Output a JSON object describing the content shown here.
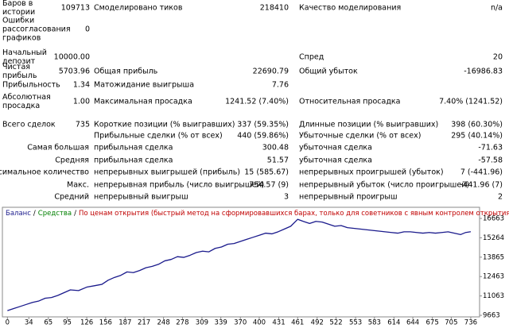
{
  "report": {
    "rows": [
      [
        "Баров в истории",
        "109713",
        "Смоделировано тиков",
        "218410",
        "Качество моделирования",
        "n/a"
      ],
      [
        "Ошибки рассогласования графиков",
        "0",
        null,
        null,
        null,
        null
      ],
      [
        "Начальный депозит",
        "10000.00",
        null,
        null,
        "Спред",
        "20"
      ],
      [
        "Чистая прибыль",
        "5703.96",
        "Общая прибыль",
        "22690.79",
        "Общий убыток",
        "-16986.83"
      ],
      [
        "Прибыльность",
        "1.34",
        "Матожидание выигрыша",
        "7.76",
        null,
        null
      ],
      [
        "Абсолютная просадка",
        "1.00",
        "Максимальная просадка",
        "1241.52 (7.40%)",
        "Относительная просадка",
        "7.40% (1241.52)"
      ],
      [
        "Всего сделок",
        "735",
        "Короткие позиции (% выигравших)",
        "337 (59.35%)",
        "Длинные позиции (% выигравших)",
        "398 (60.30%)"
      ],
      [
        null,
        null,
        "Прибыльные сделки (% от всех)",
        "440 (59.86%)",
        "Убыточные сделки (% от всех)",
        "295 (40.14%)"
      ],
      [
        "Самая большая",
        null,
        "прибыльная сделка",
        "300.48",
        "убыточная сделка",
        "-71.63"
      ],
      [
        "Средняя",
        null,
        "прибыльная сделка",
        "51.57",
        "убыточная сделка",
        "-57.58"
      ],
      [
        "Максимальное количество",
        null,
        "непрерывных выигрышей (прибыль)",
        "15 (585.67)",
        "непрерывных проигрышей (убыток)",
        "7 (-441.96)"
      ],
      [
        "Макс.",
        null,
        "непрерывная прибыль (число выигрышей)",
        "754.57 (9)",
        "непрерывный убыток (число проигрышей)",
        "-441.96 (7)"
      ],
      [
        "Средний",
        null,
        "непрерывный выигрыш",
        "3",
        "непрерывный проигрыш",
        "2"
      ]
    ]
  },
  "chart_data": {
    "type": "line",
    "legend_separator": "/",
    "equity_label": "Средства",
    "equity_color": "#008000",
    "method_label": "По ценам открытия (быстрый метод на сформировавшихся барах, только для советников с явным контролем открытия баров)",
    "method_color": "#c00000",
    "x": [
      0,
      10,
      20,
      30,
      40,
      50,
      60,
      70,
      80,
      90,
      100,
      113,
      126,
      138,
      150,
      160,
      170,
      180,
      190,
      200,
      210,
      220,
      230,
      240,
      250,
      260,
      270,
      280,
      290,
      300,
      310,
      320,
      330,
      340,
      350,
      360,
      370,
      380,
      390,
      400,
      410,
      420,
      430,
      440,
      450,
      461,
      470,
      480,
      490,
      500,
      510,
      520,
      530,
      540,
      550,
      560,
      570,
      580,
      590,
      600,
      610,
      620,
      630,
      640,
      650,
      660,
      670,
      680,
      690,
      700,
      710,
      720,
      728,
      736
    ],
    "series": [
      {
        "name": "Баланс",
        "color": "#1a1a8c",
        "values": [
          10000,
          10150,
          10300,
          10450,
          10600,
          10700,
          10900,
          10950,
          11100,
          11300,
          11500,
          11450,
          11700,
          11800,
          11900,
          12200,
          12400,
          12550,
          12800,
          12750,
          12900,
          13100,
          13200,
          13350,
          13600,
          13700,
          13900,
          13850,
          14000,
          14200,
          14300,
          14250,
          14500,
          14600,
          14800,
          14850,
          15000,
          15150,
          15300,
          15450,
          15600,
          15550,
          15700,
          15900,
          16100,
          16600,
          16450,
          16300,
          16450,
          16400,
          16250,
          16100,
          16150,
          16000,
          15950,
          15900,
          15850,
          15800,
          15750,
          15700,
          15650,
          15600,
          15700,
          15700,
          15650,
          15600,
          15650,
          15600,
          15650,
          15700,
          15600,
          15500,
          15650,
          15704
        ]
      }
    ],
    "xlim": [
      -8,
      750
    ],
    "xticks": [
      0,
      34,
      65,
      95,
      126,
      156,
      187,
      217,
      248,
      278,
      309,
      339,
      370,
      400,
      431,
      461,
      492,
      522,
      553,
      583,
      614,
      644,
      675,
      705,
      736
    ],
    "ylim": [
      9550,
      17470
    ],
    "yticks": [
      9663,
      11063,
      12463,
      13865,
      15264,
      16663
    ],
    "grid": false
  }
}
